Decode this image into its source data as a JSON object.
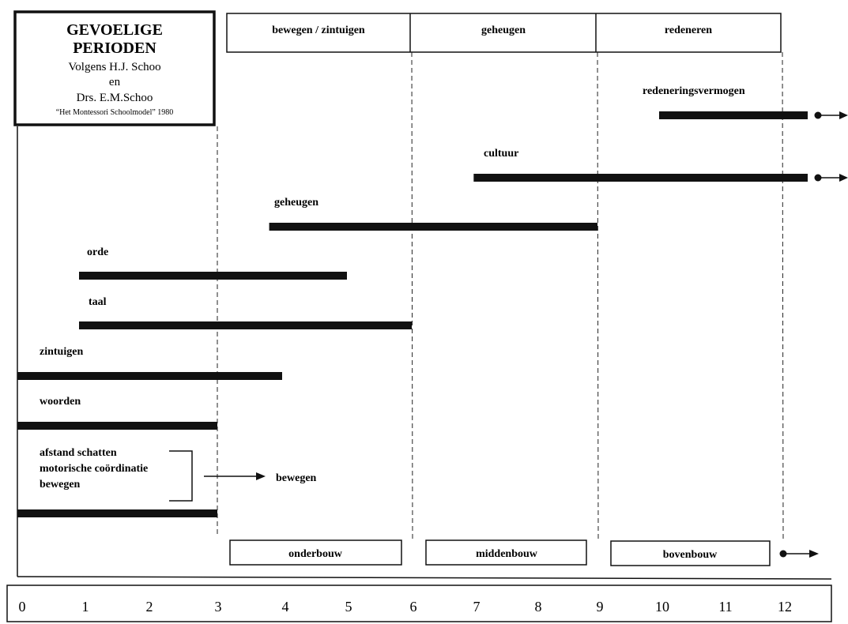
{
  "title_box": {
    "line1": "GEVOELIGE",
    "line2": "PERIODEN",
    "line3": "Volgens H.J. Schoo",
    "line4": "en",
    "line5": "Drs. E.M.Schoo",
    "line6": "“Het Montessori Schoolmodel” 1980"
  },
  "phase_headers": [
    "bewegen / zintuigen",
    "geheugen",
    "redeneren"
  ],
  "school_levels": [
    "onderbouw",
    "middenbouw",
    "bovenbouw"
  ],
  "chart_data": {
    "type": "timeline",
    "axis": {
      "ticks": [
        0,
        1,
        2,
        3,
        4,
        5,
        6,
        7,
        8,
        9,
        10,
        11,
        12
      ],
      "range": [
        0,
        13
      ]
    },
    "phase_boundaries": [
      3,
      6,
      9,
      12
    ],
    "periods": [
      {
        "label": "redeneringsvermogen",
        "start": 10,
        "end": 12.4,
        "continues": true
      },
      {
        "label": "cultuur",
        "start": 7,
        "end": 12.4,
        "continues": true
      },
      {
        "label": "geheugen",
        "start": 3.8,
        "end": 9
      },
      {
        "label": "orde",
        "start": 1,
        "end": 5
      },
      {
        "label": "taal",
        "start": 1,
        "end": 6
      },
      {
        "label": "zintuigen",
        "start": 0,
        "end": 4
      },
      {
        "label": "woorden",
        "start": 0,
        "end": 3
      },
      {
        "label": "",
        "start": 0,
        "end": 3
      }
    ],
    "bracket_items": [
      "afstand schatten",
      "motorische coördinatie",
      "bewegen"
    ],
    "bracket_result": "bewegen"
  }
}
